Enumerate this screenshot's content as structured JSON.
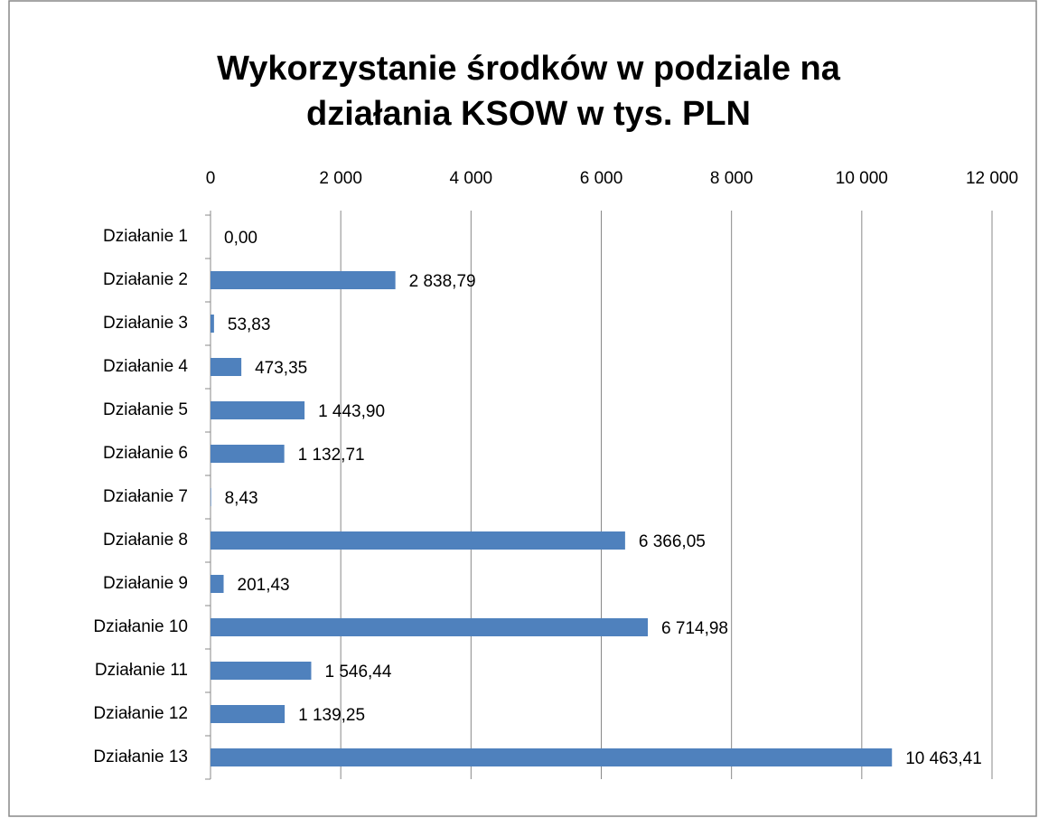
{
  "chart_data": {
    "type": "bar",
    "orientation": "horizontal",
    "title": [
      "Wykorzystanie środków w podziale na",
      "działania KSOW w tys. PLN"
    ],
    "categories": [
      "Działanie 1",
      "Działanie 2",
      "Działanie 3",
      "Działanie 4",
      "Działanie 5",
      "Działanie 6",
      "Działanie 7",
      "Działanie 8",
      "Działanie 9",
      "Działanie 10",
      "Działanie 11",
      "Działanie 12",
      "Działanie 13"
    ],
    "values": [
      0,
      2838.79,
      53.83,
      473.35,
      1443.9,
      1132.71,
      8.43,
      6366.05,
      201.43,
      6714.98,
      1546.44,
      1139.25,
      10463.41
    ],
    "value_labels": [
      "0,00",
      "2 838,79",
      "53,83",
      "473,35",
      "1 443,90",
      "1 132,71",
      "8,43",
      "6 366,05",
      "201,43",
      "6 714,98",
      "1 546,44",
      "1 139,25",
      "10 463,41"
    ],
    "color": "#4f81bd",
    "xlim": [
      0,
      12000
    ],
    "xticks": [
      0,
      {
        "value": 2000,
        "label": "2 000"
      },
      {
        "value": 4000,
        "label": "4 000"
      },
      {
        "value": 6000,
        "label": "6 000"
      },
      {
        "value": 8000,
        "label": "8 000"
      },
      {
        "value": 10000,
        "label": "10 000"
      },
      {
        "value": 12000,
        "label": "12 000"
      }
    ],
    "grid": true
  }
}
